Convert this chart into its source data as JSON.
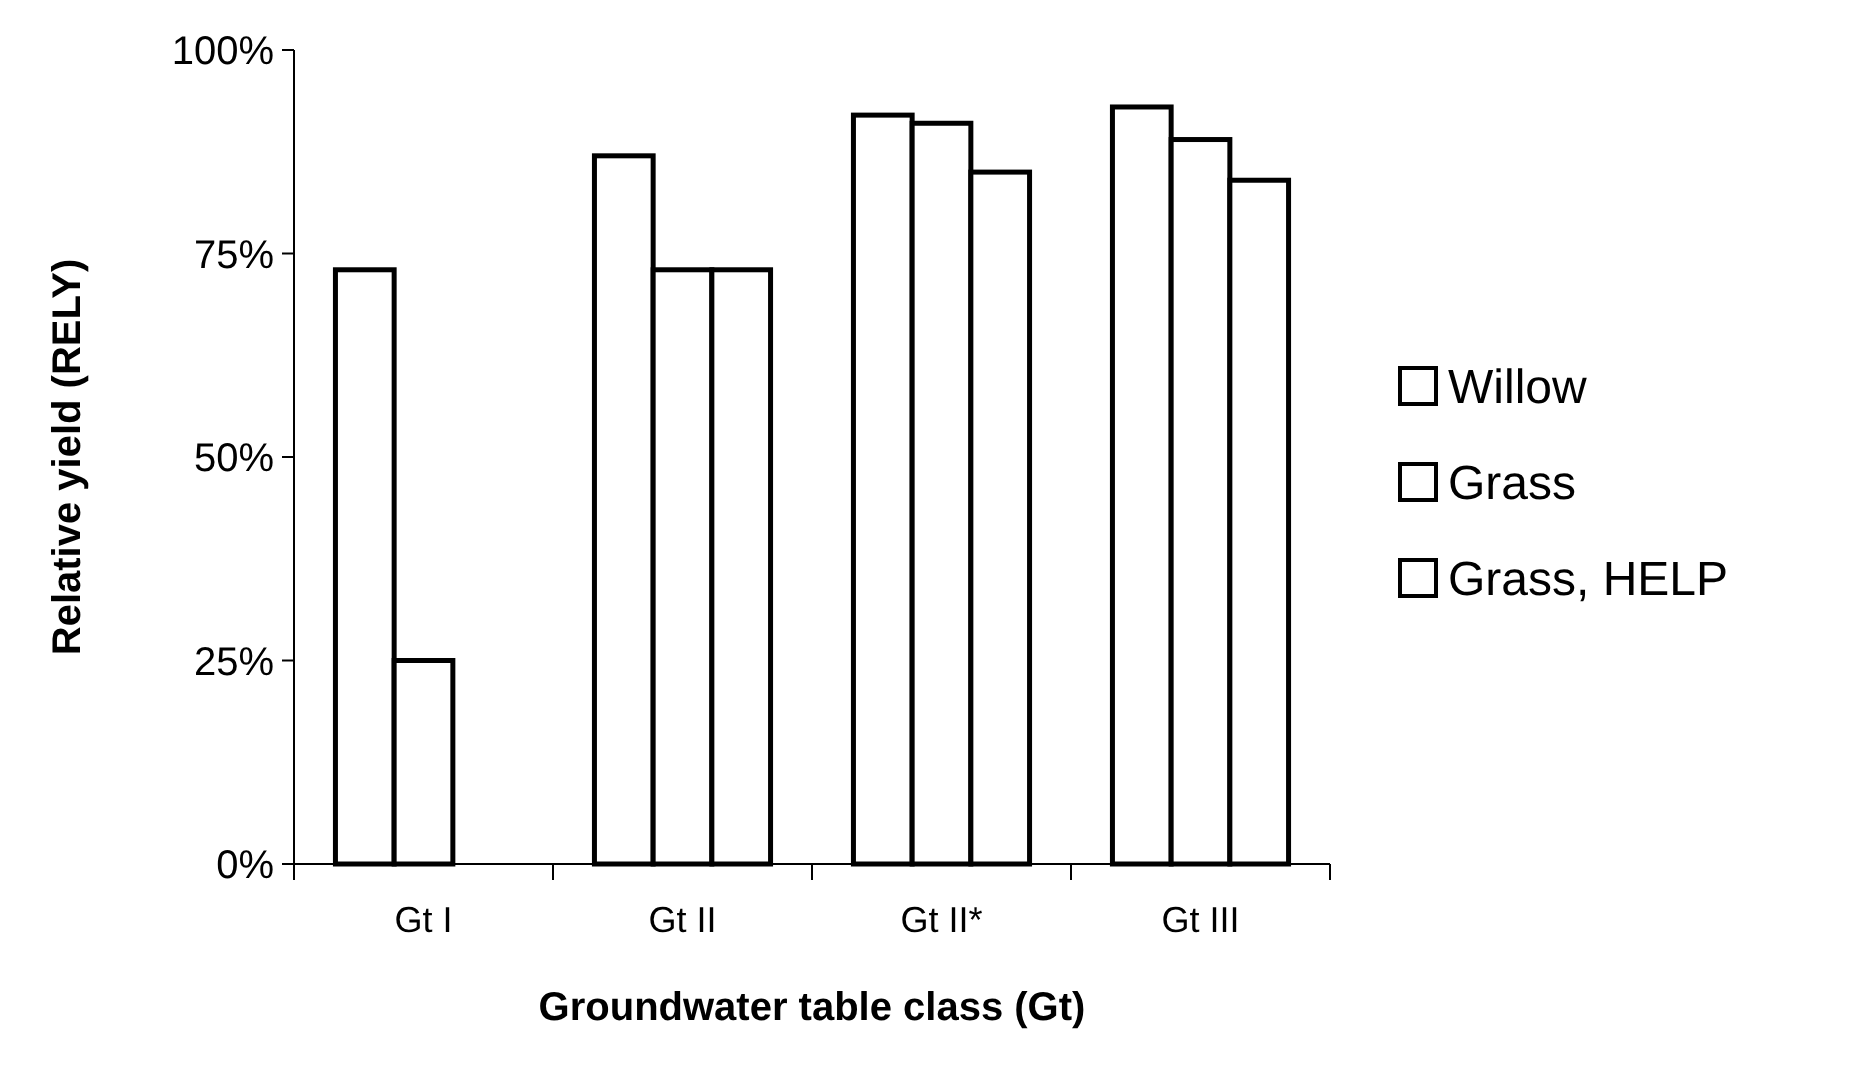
{
  "chart_data": {
    "type": "bar",
    "xlabel": "Groundwater table class (Gt)",
    "ylabel": "Relative yield (RELY)",
    "categories": [
      "Gt I",
      "Gt II",
      "Gt II*",
      "Gt III"
    ],
    "series": [
      {
        "name": "Willow",
        "color": "#ffffff",
        "values": [
          73,
          87,
          92,
          93
        ]
      },
      {
        "name": "Grass",
        "color": "#ffffff",
        "values": [
          25,
          73,
          91,
          89
        ]
      },
      {
        "name": "Grass, HELP",
        "color": "#ffffff",
        "values": [
          null,
          73,
          85,
          84
        ]
      }
    ],
    "ylim": [
      0,
      100
    ],
    "yticks": [
      {
        "value": 0,
        "label": "0%"
      },
      {
        "value": 25,
        "label": "25%"
      },
      {
        "value": 50,
        "label": "50%"
      },
      {
        "value": 75,
        "label": "75%"
      },
      {
        "value": 100,
        "label": "100%"
      }
    ],
    "legend": "right"
  }
}
